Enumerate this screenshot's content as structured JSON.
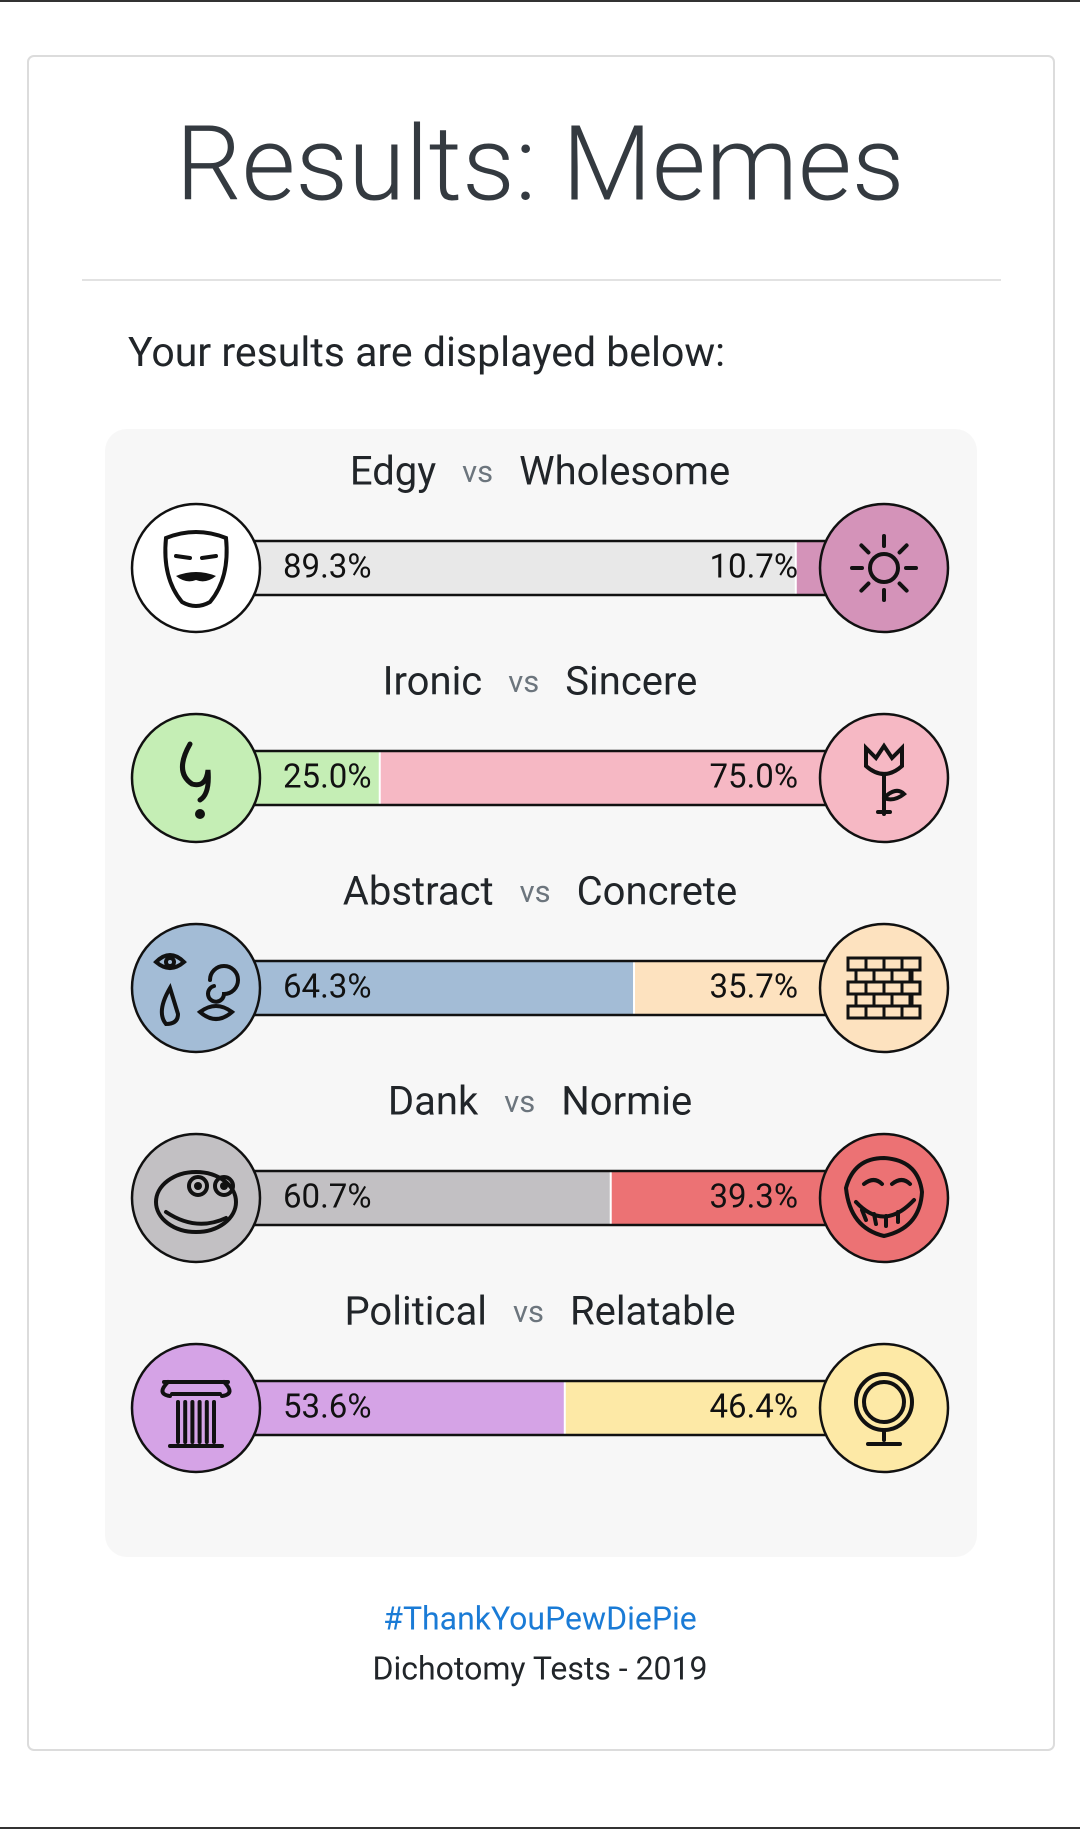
{
  "header": {
    "title": "Results: Memes"
  },
  "intro": "Your results are displayed below:",
  "separator": "vs",
  "scales": [
    {
      "left": "Edgy",
      "right": "Wholesome",
      "left_value": 89.3,
      "left_label": "89.3%",
      "right_value": 10.7,
      "right_label": "10.7%",
      "left_color": "#e8e8e8",
      "right_color": "#d493b9"
    },
    {
      "left": "Ironic",
      "right": "Sincere",
      "left_value": 25.0,
      "left_label": "25.0%",
      "right_value": 75.0,
      "right_label": "75.0%",
      "left_color": "#c5eeb5",
      "right_color": "#f6b8c4"
    },
    {
      "left": "Abstract",
      "right": "Concrete",
      "left_value": 64.3,
      "left_label": "64.3%",
      "right_value": 35.7,
      "right_label": "35.7%",
      "left_color": "#a3bcd6",
      "right_color": "#fde2bf"
    },
    {
      "left": "Dank",
      "right": "Normie",
      "left_value": 60.7,
      "left_label": "60.7%",
      "right_value": 39.3,
      "right_label": "39.3%",
      "left_color": "#c2c0c3",
      "right_color": "#ec7274"
    },
    {
      "left": "Political",
      "right": "Relatable",
      "left_value": 53.6,
      "left_label": "53.6%",
      "right_value": 46.4,
      "right_label": "46.4%",
      "left_color": "#d5a3e6",
      "right_color": "#fde9a6"
    }
  ],
  "footer": {
    "link": "#ThankYouPewDiePie",
    "credit": "Dichotomy Tests - 2019"
  }
}
